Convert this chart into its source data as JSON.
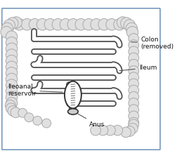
{
  "background_color": "#ffffff",
  "border_color": "#7799bb",
  "colon_fill": "#e0e0e0",
  "colon_outline": "#aaaaaa",
  "ileum_outline": "#555555",
  "ileum_fill": "#ffffff",
  "reservoir_outline": "#333333",
  "reservoir_fill": "#ffffff",
  "anus_fill": "#cccccc",
  "anus_outline": "#333333",
  "label_color": "#111111",
  "line_color": "#555555",
  "labels": {
    "colon": "Colon\n(removed)",
    "ileum": "Ileum",
    "ileoanal": "Ileoanal\nreservoir",
    "anus": "Anus"
  },
  "label_fontsize": 6.5,
  "figsize": [
    2.52,
    2.25
  ],
  "dpi": 100
}
